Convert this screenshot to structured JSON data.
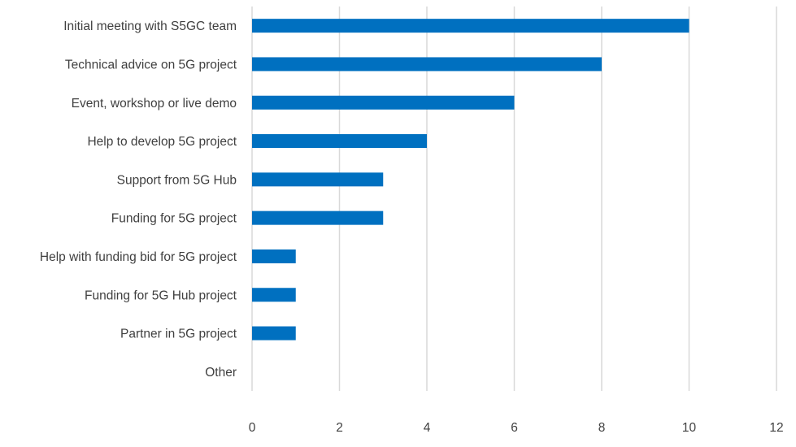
{
  "chart_data": {
    "type": "bar",
    "orientation": "horizontal",
    "categories": [
      "Initial meeting with S5GC team",
      "Technical advice on 5G project",
      "Event, workshop or live demo",
      "Help to develop 5G project",
      "Support from 5G Hub",
      "Funding for 5G project",
      "Help with funding bid for 5G project",
      "Funding for 5G Hub project",
      "Partner in 5G project",
      "Other"
    ],
    "values": [
      10,
      8,
      6,
      4,
      3,
      3,
      1,
      1,
      1,
      0
    ],
    "xlim": [
      0,
      12
    ],
    "xticks": [
      "0",
      "2",
      "4",
      "6",
      "8",
      "10",
      "12"
    ],
    "grid": true,
    "bar_color": "#0070C0",
    "grid_color": "#D9D9D9"
  }
}
